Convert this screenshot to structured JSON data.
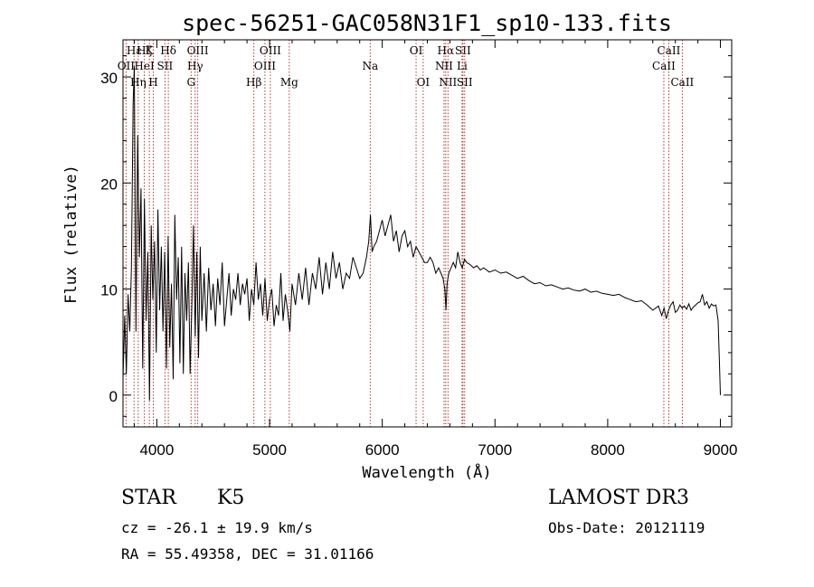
{
  "chart_data": {
    "type": "line",
    "title": "spec-56251-GAC058N31F1_sp10-133.fits",
    "xlabel": "Wavelength (Å)",
    "ylabel": "Flux (relative)",
    "xlim": [
      3700,
      9100
    ],
    "ylim": [
      -3,
      33.5
    ],
    "xticks": [
      4000,
      5000,
      6000,
      7000,
      8000,
      9000
    ],
    "yticks": [
      0,
      10,
      20,
      30
    ],
    "xtick_labels": [
      "4000",
      "5000",
      "6000",
      "7000",
      "8000",
      "9000"
    ],
    "ytick_labels": [
      "0",
      "10",
      "20",
      "30"
    ],
    "series": [
      {
        "name": "flux",
        "x": [
          3700,
          3715,
          3730,
          3745,
          3760,
          3775,
          3790,
          3800,
          3815,
          3830,
          3845,
          3860,
          3875,
          3890,
          3905,
          3920,
          3935,
          3950,
          3965,
          3980,
          3995,
          4010,
          4025,
          4040,
          4055,
          4070,
          4085,
          4100,
          4115,
          4130,
          4145,
          4160,
          4175,
          4190,
          4205,
          4220,
          4235,
          4250,
          4265,
          4280,
          4295,
          4310,
          4325,
          4340,
          4355,
          4370,
          4385,
          4400,
          4420,
          4440,
          4460,
          4480,
          4500,
          4520,
          4540,
          4560,
          4580,
          4600,
          4620,
          4640,
          4660,
          4680,
          4700,
          4720,
          4740,
          4760,
          4780,
          4800,
          4820,
          4840,
          4860,
          4880,
          4900,
          4920,
          4940,
          4960,
          4980,
          5000,
          5020,
          5040,
          5060,
          5080,
          5100,
          5120,
          5140,
          5160,
          5180,
          5200,
          5230,
          5260,
          5290,
          5320,
          5350,
          5380,
          5410,
          5440,
          5470,
          5500,
          5530,
          5560,
          5590,
          5620,
          5650,
          5680,
          5710,
          5740,
          5770,
          5800,
          5830,
          5860,
          5880,
          5895,
          5910,
          5925,
          5950,
          5975,
          6000,
          6025,
          6050,
          6075,
          6100,
          6125,
          6150,
          6175,
          6200,
          6225,
          6250,
          6275,
          6300,
          6325,
          6350,
          6375,
          6400,
          6425,
          6450,
          6475,
          6500,
          6520,
          6540,
          6555,
          6565,
          6575,
          6590,
          6610,
          6630,
          6650,
          6670,
          6690,
          6710,
          6730,
          6750,
          6780,
          6810,
          6840,
          6870,
          6900,
          6950,
          7000,
          7050,
          7100,
          7150,
          7200,
          7250,
          7300,
          7350,
          7400,
          7450,
          7500,
          7550,
          7600,
          7650,
          7700,
          7750,
          7800,
          7850,
          7900,
          7950,
          8000,
          8050,
          8100,
          8150,
          8200,
          8250,
          8300,
          8350,
          8400,
          8450,
          8480,
          8500,
          8520,
          8540,
          8560,
          8580,
          8600,
          8620,
          8640,
          8660,
          8680,
          8700,
          8720,
          8740,
          8760,
          8780,
          8800,
          8820,
          8840,
          8860,
          8880,
          8900,
          8920,
          8940,
          8960,
          8980,
          8990,
          9000
        ],
        "values": [
          1.5,
          7.5,
          2.0,
          9.5,
          6.0,
          12.0,
          27.5,
          31.0,
          6.0,
          24.5,
          13.0,
          19.5,
          2.5,
          18.5,
          7.0,
          13.5,
          -0.5,
          16.0,
          9.0,
          14.5,
          4.0,
          17.5,
          8.0,
          14.0,
          6.0,
          13.5,
          2.5,
          15.0,
          4.5,
          10.5,
          1.5,
          17.0,
          9.0,
          13.0,
          3.0,
          14.0,
          2.0,
          11.5,
          7.0,
          12.5,
          2.0,
          8.0,
          16.0,
          5.5,
          13.5,
          3.5,
          14.0,
          7.0,
          11.5,
          6.0,
          12.0,
          8.0,
          10.5,
          6.5,
          11.0,
          8.5,
          12.5,
          6.5,
          9.0,
          11.5,
          7.5,
          10.0,
          9.0,
          11.5,
          8.5,
          10.5,
          9.5,
          11.0,
          7.0,
          10.0,
          8.5,
          12.5,
          9.0,
          10.5,
          7.5,
          11.0,
          7.0,
          9.0,
          10.0,
          6.5,
          8.5,
          7.5,
          11.5,
          7.0,
          9.5,
          8.0,
          6.0,
          10.5,
          8.5,
          11.5,
          9.0,
          12.0,
          8.5,
          11.5,
          10.0,
          13.0,
          9.5,
          12.5,
          10.0,
          13.5,
          11.0,
          12.5,
          10.0,
          11.5,
          11.0,
          13.0,
          12.0,
          11.0,
          11.5,
          13.0,
          14.5,
          17.0,
          13.5,
          14.0,
          14.5,
          15.5,
          16.5,
          15.0,
          16.0,
          17.0,
          14.5,
          15.5,
          13.5,
          15.0,
          15.5,
          14.0,
          14.5,
          13.0,
          14.0,
          13.5,
          13.0,
          12.5,
          12.5,
          13.0,
          12.5,
          11.5,
          12.0,
          11.5,
          11.0,
          10.0,
          8.0,
          10.5,
          11.5,
          12.0,
          12.5,
          12.0,
          13.5,
          12.5,
          12.0,
          12.8,
          12.5,
          12.3,
          12.0,
          12.2,
          11.8,
          12.0,
          11.6,
          11.8,
          11.5,
          11.6,
          11.3,
          11.0,
          11.2,
          10.8,
          10.5,
          10.6,
          10.3,
          10.4,
          10.2,
          10.0,
          10.1,
          9.9,
          9.8,
          10.0,
          9.7,
          9.8,
          9.6,
          9.5,
          9.4,
          9.5,
          9.2,
          9.0,
          8.8,
          8.9,
          8.5,
          8.0,
          8.4,
          7.5,
          8.2,
          7.2,
          8.0,
          8.5,
          8.8,
          7.8,
          8.0,
          8.5,
          8.2,
          8.4,
          8.1,
          8.6,
          8.0,
          8.3,
          8.5,
          8.7,
          8.8,
          9.5,
          8.5,
          8.8,
          8.2,
          8.6,
          8.4,
          8.5,
          7.0,
          3.5,
          0.0
        ]
      }
    ],
    "lines": [
      {
        "label": "Hε",
        "x": 3798,
        "row": 0
      },
      {
        "label": "OII",
        "x": 3727,
        "row": 1
      },
      {
        "label": "Hη",
        "x": 3835,
        "row": 2
      },
      {
        "label": "Hζ",
        "x": 3889,
        "row": 0
      },
      {
        "label": "HeI",
        "x": 3889,
        "row": 1
      },
      {
        "label": "K",
        "x": 3934,
        "row": 0
      },
      {
        "label": "H",
        "x": 3969,
        "row": 2
      },
      {
        "label": "SII",
        "x": 4072,
        "row": 1
      },
      {
        "label": "Hδ",
        "x": 4102,
        "row": 0
      },
      {
        "label": "OIII",
        "x": 4363,
        "row": 0
      },
      {
        "label": "Hγ",
        "x": 4340,
        "row": 1
      },
      {
        "label": "G",
        "x": 4304,
        "row": 2
      },
      {
        "label": "Hβ",
        "x": 4861,
        "row": 2
      },
      {
        "label": "OIII",
        "x": 5007,
        "row": 0
      },
      {
        "label": "OIII",
        "x": 4959,
        "row": 1
      },
      {
        "label": "Mg",
        "x": 5175,
        "row": 2
      },
      {
        "label": "Na",
        "x": 5893,
        "row": 1
      },
      {
        "label": "OI",
        "x": 6300,
        "row": 0
      },
      {
        "label": "OI",
        "x": 6363,
        "row": 2
      },
      {
        "label": "Hα",
        "x": 6563,
        "row": 0
      },
      {
        "label": "NII",
        "x": 6548,
        "row": 1
      },
      {
        "label": "NII",
        "x": 6583,
        "row": 2
      },
      {
        "label": "SII",
        "x": 6716,
        "row": 0
      },
      {
        "label": "Li",
        "x": 6708,
        "row": 1
      },
      {
        "label": "SII",
        "x": 6731,
        "row": 2
      },
      {
        "label": "CaII",
        "x": 8542,
        "row": 0
      },
      {
        "label": "CaII",
        "x": 8498,
        "row": 1
      },
      {
        "label": "CaII",
        "x": 8662,
        "row": 2
      }
    ]
  },
  "info": {
    "class_label": "STAR",
    "subclass_label": "K5",
    "cz_line": "cz = -26.1 ± 19.9 km/s",
    "radec_line": "RA =  55.49358, DEC =  31.01166",
    "survey": "LAMOST DR3",
    "obs_date": "Obs-Date: 20121119"
  }
}
